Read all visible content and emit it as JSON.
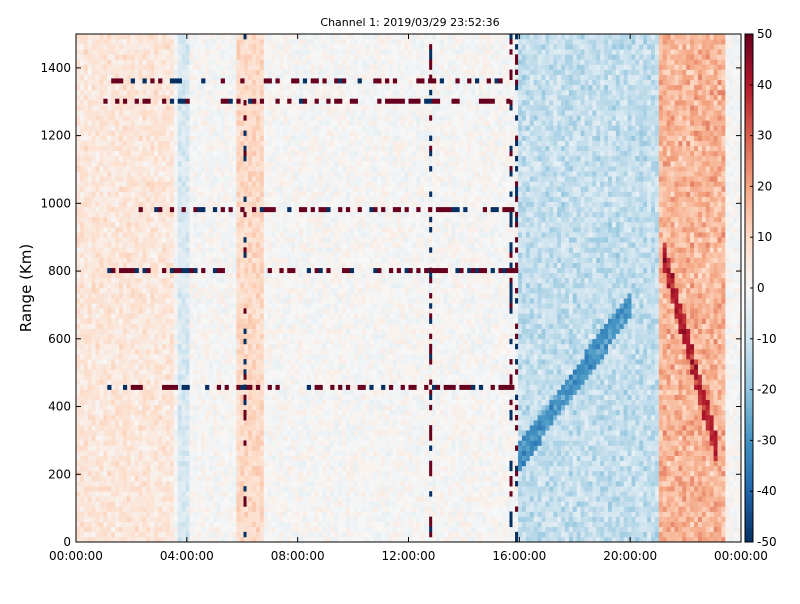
{
  "chart_data": {
    "type": "heatmap",
    "title": "Channel 1: 2019/03/29 23:52:36",
    "xlabel": "",
    "ylabel": "Range (Km)",
    "xlim": [
      "00:00:00",
      "24:00:00"
    ],
    "ylim": [
      0,
      1500
    ],
    "x_ticks": [
      "00:00:00",
      "04:00:00",
      "08:00:00",
      "12:00:00",
      "16:00:00",
      "20:00:00",
      "00:00:00"
    ],
    "x_tick_hours": [
      0,
      4,
      8,
      12,
      16,
      20,
      24
    ],
    "y_ticks": [
      0,
      200,
      400,
      600,
      800,
      1000,
      1200,
      1400
    ],
    "colorbar": {
      "min": -50,
      "max": 50,
      "ticks": [
        50,
        40,
        30,
        20,
        10,
        0,
        -10,
        -20,
        -30,
        -40,
        -50
      ],
      "colormap": "RdBu_r",
      "color_stops": [
        "#053061",
        "#2166ac",
        "#4393c3",
        "#92c5de",
        "#d1e5f0",
        "#f7f7f7",
        "#fddbc7",
        "#f4a582",
        "#d6604d",
        "#b2182b",
        "#67001f"
      ]
    },
    "grid": false,
    "features": {
      "horizontal_bands_km": [
        1360,
        1300,
        980,
        800,
        455
      ],
      "vertical_stripes_hours": [
        6.1,
        12.8,
        15.7,
        15.9
      ],
      "blue_region_hours": [
        16.0,
        21.0
      ],
      "red_region_hours": [
        21.0,
        23.5
      ],
      "blue_diagonal": {
        "from": [
          16.0,
          250
        ],
        "to": [
          20.0,
          700
        ]
      },
      "red_diagonal": {
        "from": [
          21.2,
          850
        ],
        "to": [
          23.2,
          250
        ]
      }
    }
  }
}
